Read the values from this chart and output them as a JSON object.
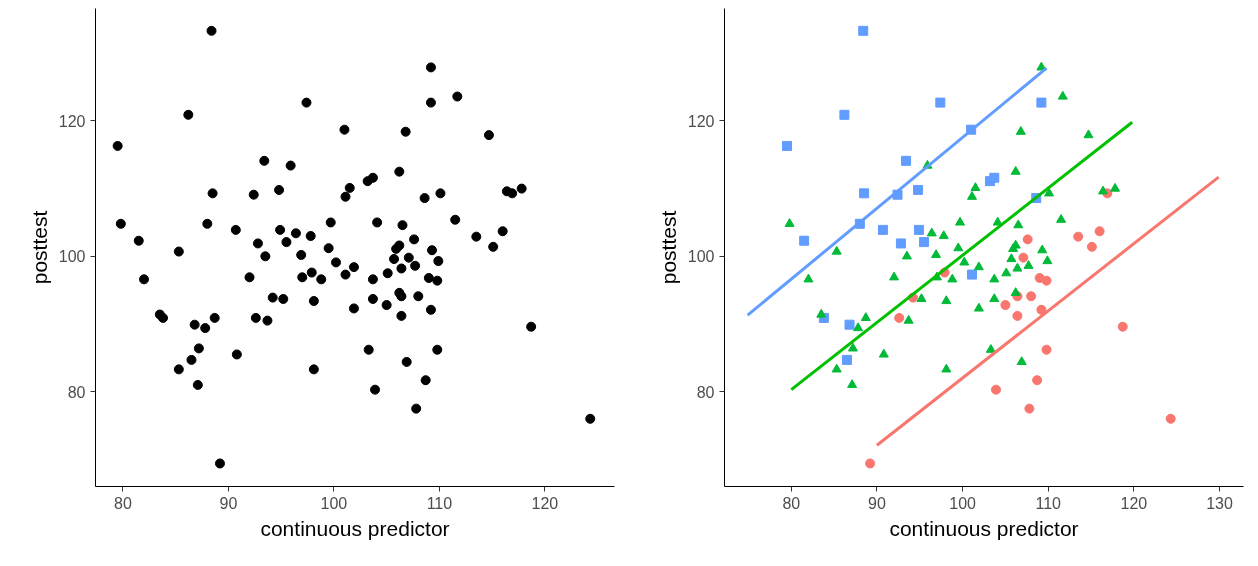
{
  "chart_data": [
    {
      "type": "scatter",
      "xlabel": "continuous predictor",
      "ylabel": "posttest",
      "marker": "circle",
      "color": "#000000",
      "grid": false,
      "x": [
        88.4,
        97.4,
        86.2,
        79.5,
        101.0,
        93.4,
        88.5,
        92.4,
        94.8,
        88.0,
        90.7,
        81.5,
        94.9,
        92.8,
        95.5,
        101.1,
        83.8,
        86.8,
        86.5,
        109.2,
        103.2,
        103.7,
        108.6,
        97.9,
        94.2,
        92.6,
        89.2,
        116.9,
        107.6,
        113.5,
        116.0,
        115.1,
        107.1,
        109.0,
        109.8,
        106.4,
        108.0,
        105.0,
        109.2,
        106.4,
        118.7,
        109.8,
        108.7,
        103.9,
        107.8,
        124.3,
        95.9,
        101.5,
        101.1,
        79.8,
        99.7,
        85.3,
        96.4,
        97.8,
        99.5,
        93.5,
        96.9,
        100.2,
        101.9,
        82.0,
        92.0,
        97.0,
        98.8,
        95.2,
        98.1,
        101.9,
        83.5,
        88.7,
        93.7,
        87.8,
        87.2,
        90.8,
        85.3,
        98.1,
        87.1,
        109.2,
        111.7,
        106.8,
        114.7,
        106.2,
        110.1,
        116.4,
        117.8,
        104.1,
        106.5,
        111.5,
        106.2,
        105.9,
        109.3,
        109.9,
        107.7,
        105.7,
        106.4,
        105.1,
        103.7,
        103.7,
        103.3,
        106.9,
        106.2
      ],
      "values": [
        133.3,
        122.7,
        120.9,
        116.3,
        118.7,
        114.1,
        109.3,
        109.1,
        109.8,
        104.8,
        103.9,
        102.3,
        103.9,
        101.9,
        102.1,
        97.3,
        90.9,
        89.9,
        84.7,
        122.7,
        111.1,
        111.6,
        108.6,
        97.6,
        93.9,
        90.9,
        69.4,
        109.3,
        102.5,
        102.9,
        103.7,
        101.4,
        99.8,
        96.8,
        96.4,
        94.1,
        94.1,
        92.8,
        92.1,
        91.2,
        89.6,
        86.2,
        81.7,
        80.3,
        77.5,
        76.0,
        113.4,
        110.1,
        108.8,
        104.8,
        105.0,
        100.7,
        103.4,
        103.0,
        101.2,
        100.0,
        100.2,
        99.1,
        98.4,
        96.6,
        96.9,
        96.9,
        96.6,
        93.7,
        93.4,
        92.3,
        91.4,
        90.9,
        90.5,
        89.4,
        86.4,
        85.5,
        83.3,
        83.3,
        81.0,
        127.9,
        123.6,
        118.4,
        117.9,
        112.5,
        109.3,
        109.6,
        110.0,
        105.0,
        104.6,
        105.4,
        101.6,
        101.1,
        100.9,
        99.3,
        98.6,
        99.6,
        98.2,
        97.5,
        96.6,
        93.7,
        86.2,
        84.4,
        94.6
      ],
      "xlim": [
        77.4,
        126.6
      ],
      "xticks": [
        80,
        90,
        100,
        110,
        120
      ],
      "ylim": [
        66.0,
        136.6
      ],
      "yticks": [
        80,
        100,
        120
      ]
    },
    {
      "type": "scatter",
      "xlabel": "continuous predictor",
      "ylabel": "posttest",
      "grid": false,
      "xlim": [
        72.2,
        132.8
      ],
      "xticks": [
        80,
        90,
        100,
        110,
        120,
        130
      ],
      "ylim": [
        66.0,
        136.6
      ],
      "yticks": [
        80,
        100,
        120
      ],
      "series": [
        {
          "type": "scatter",
          "marker": "circle",
          "color": "#f8766d",
          "x": [
            97.9,
            94.2,
            92.6,
            89.2,
            116.9,
            107.6,
            113.5,
            116.0,
            115.1,
            107.1,
            109.0,
            109.8,
            106.4,
            108.0,
            105.0,
            109.2,
            106.4,
            118.7,
            109.8,
            108.7,
            103.9,
            107.8,
            124.3
          ],
          "values": [
            97.6,
            93.9,
            90.9,
            69.4,
            109.3,
            102.5,
            102.9,
            103.7,
            101.4,
            99.8,
            96.8,
            96.4,
            94.1,
            94.1,
            92.8,
            92.1,
            91.2,
            89.6,
            86.2,
            81.7,
            80.3,
            77.5,
            76.0
          ]
        },
        {
          "type": "scatter",
          "marker": "square",
          "color": "#619cff",
          "x": [
            88.4,
            97.4,
            86.2,
            79.5,
            101.0,
            93.4,
            88.5,
            92.4,
            94.8,
            88.0,
            90.7,
            81.5,
            94.9,
            92.8,
            95.5,
            101.1,
            83.8,
            86.8,
            86.5,
            109.2,
            103.2,
            103.7,
            108.6
          ],
          "values": [
            133.3,
            122.7,
            120.9,
            116.3,
            118.7,
            114.1,
            109.3,
            109.1,
            109.8,
            104.8,
            103.9,
            102.3,
            103.9,
            101.9,
            102.1,
            97.3,
            90.9,
            89.9,
            84.7,
            122.7,
            111.1,
            111.6,
            108.6
          ]
        },
        {
          "type": "scatter",
          "marker": "triangle",
          "color": "#00ba38",
          "x": [
            95.9,
            101.5,
            101.1,
            79.8,
            99.7,
            85.3,
            96.4,
            97.8,
            99.5,
            93.5,
            96.9,
            100.2,
            101.9,
            82.0,
            92.0,
            97.0,
            98.8,
            95.2,
            98.1,
            101.9,
            83.5,
            88.7,
            93.7,
            87.8,
            87.2,
            90.8,
            85.3,
            98.1,
            87.1,
            109.2,
            111.7,
            106.8,
            114.7,
            106.2,
            110.1,
            116.4,
            117.8,
            104.1,
            106.5,
            111.5,
            106.2,
            105.9,
            109.3,
            109.9,
            107.7,
            105.7,
            106.4,
            105.1,
            103.7,
            103.7,
            103.3,
            106.9,
            106.2
          ],
          "values": [
            113.4,
            110.1,
            108.8,
            104.8,
            105.0,
            100.7,
            103.4,
            103.0,
            101.2,
            100.0,
            100.2,
            99.1,
            98.4,
            96.6,
            96.9,
            96.9,
            96.6,
            93.7,
            93.4,
            92.3,
            91.4,
            90.9,
            90.5,
            89.4,
            86.4,
            85.5,
            83.3,
            83.3,
            81.0,
            127.9,
            123.6,
            118.4,
            117.9,
            112.5,
            109.3,
            109.6,
            110.0,
            105.0,
            104.6,
            105.4,
            101.6,
            101.1,
            100.9,
            99.3,
            98.6,
            99.6,
            98.2,
            97.5,
            96.6,
            93.7,
            86.2,
            84.4,
            94.6
          ]
        },
        {
          "type": "line",
          "line_style": "solid",
          "color": "#f8766d",
          "x": [
            90.0,
            129.9
          ],
          "values": [
            72.1,
            111.7
          ]
        },
        {
          "type": "line",
          "line_style": "solid",
          "color": "#619cff",
          "x": [
            74.9,
            109.8
          ],
          "values": [
            91.3,
            127.8
          ]
        },
        {
          "type": "line",
          "line_style": "solid",
          "color": "#00c000",
          "x": [
            80.0,
            119.8
          ],
          "values": [
            80.3,
            119.8
          ]
        }
      ]
    }
  ]
}
